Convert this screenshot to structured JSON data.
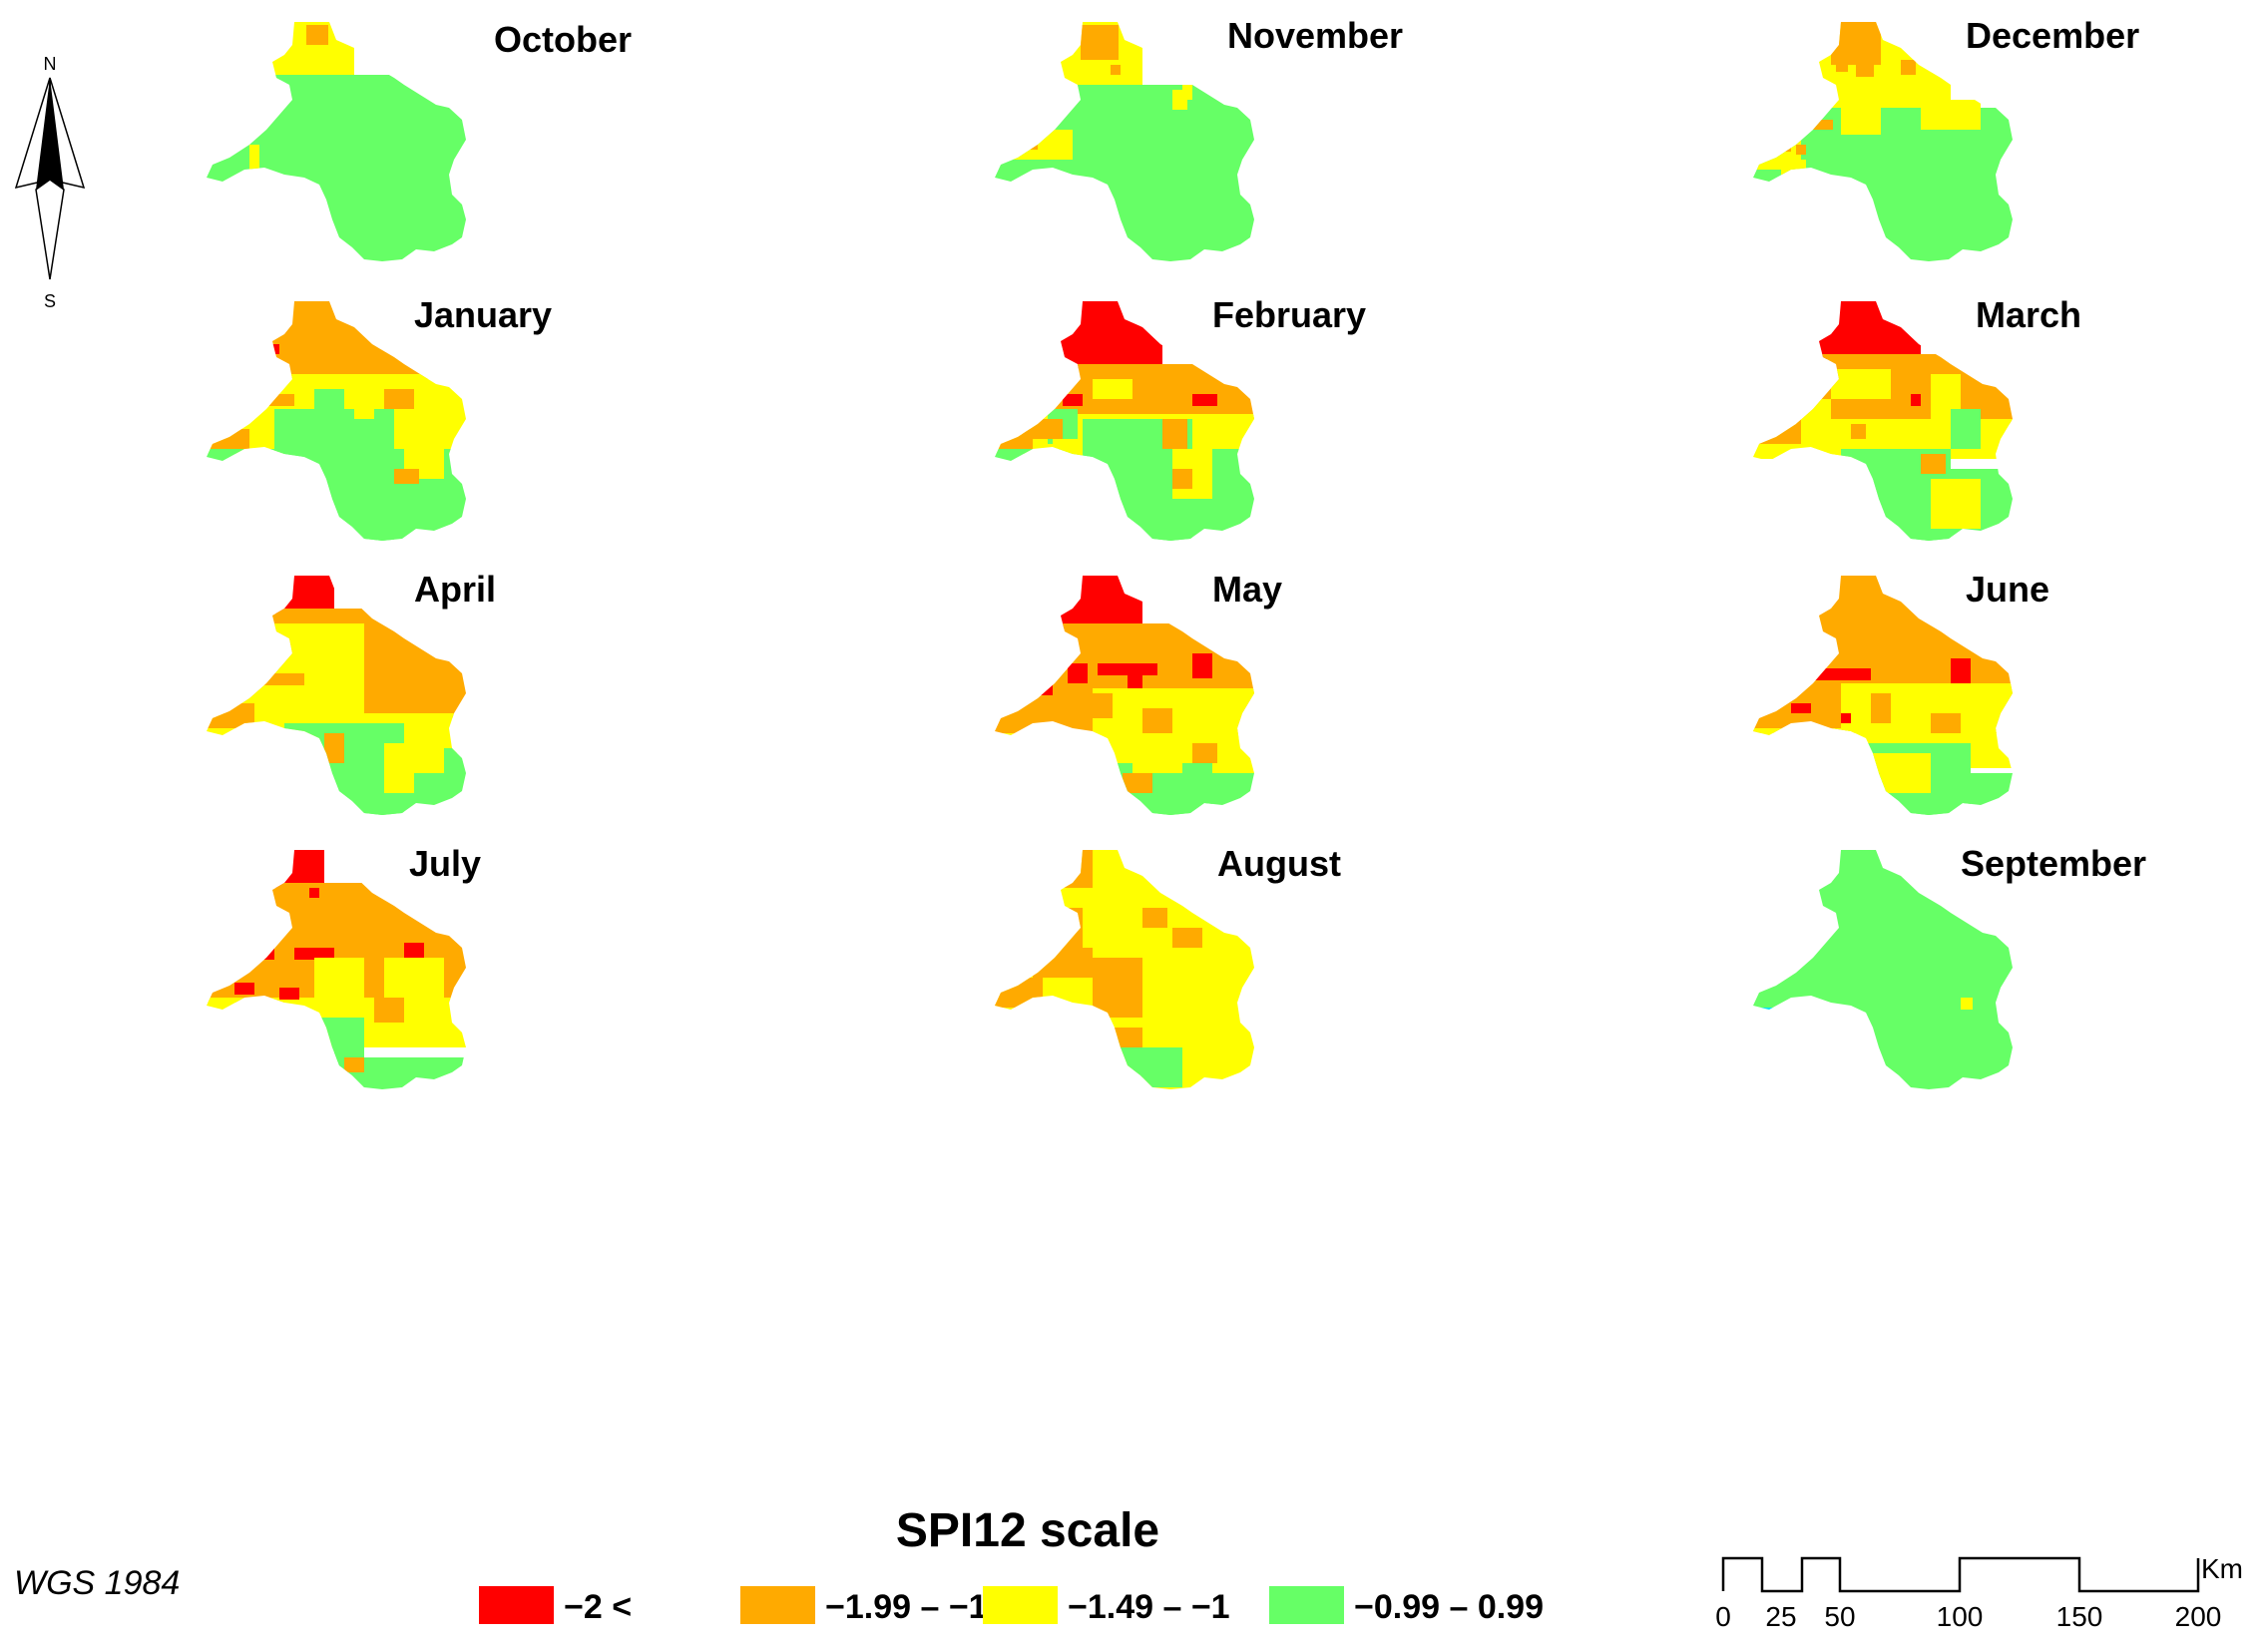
{
  "compass": {
    "north": "N",
    "south": "S"
  },
  "panels": [
    {
      "month": "October",
      "pattern": "october"
    },
    {
      "month": "November",
      "pattern": "november"
    },
    {
      "month": "December",
      "pattern": "december"
    },
    {
      "month": "January",
      "pattern": "january"
    },
    {
      "month": "February",
      "pattern": "february"
    },
    {
      "month": "March",
      "pattern": "march"
    },
    {
      "month": "April",
      "pattern": "april"
    },
    {
      "month": "May",
      "pattern": "may"
    },
    {
      "month": "June",
      "pattern": "june"
    },
    {
      "month": "July",
      "pattern": "july"
    },
    {
      "month": "August",
      "pattern": "august"
    },
    {
      "month": "September",
      "pattern": "september"
    }
  ],
  "legend": {
    "title": "SPI12 scale",
    "items": [
      {
        "label": "−2 <",
        "color": "#ff0000"
      },
      {
        "label": "−1.99 – −1.5",
        "color": "#ffaa00"
      },
      {
        "label": "−1.49 – −1",
        "color": "#ffff00"
      },
      {
        "label": "−0.99 – 0.99",
        "color": "#66ff66"
      }
    ]
  },
  "extra_colors": {
    "cyan": "#00e5ff"
  },
  "projection": "WGS 1984",
  "scale_bar": {
    "unit": "Km",
    "ticks": [
      "0",
      "25",
      "50",
      "100",
      "150",
      "200"
    ]
  }
}
